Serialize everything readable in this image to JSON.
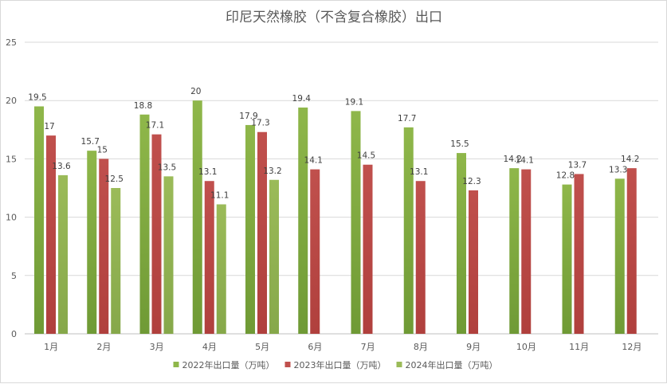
{
  "chart_data": {
    "type": "bar",
    "title": "印尼天然橡胶（不含复合橡胶）出口",
    "xlabel": "",
    "ylabel": "",
    "categories": [
      "1月",
      "2月",
      "3月",
      "4月",
      "5月",
      "6月",
      "7月",
      "8月",
      "9月",
      "10月",
      "11月",
      "12月"
    ],
    "ylim": [
      0,
      25
    ],
    "yticks": [
      0,
      5,
      10,
      15,
      20,
      25
    ],
    "grid": true,
    "legend_position": "bottom",
    "series": [
      {
        "name": "2022年出口量（万吨）",
        "color": "#8fb74a",
        "color_dark": "#6f9a35",
        "values": [
          19.5,
          15.7,
          18.8,
          20,
          17.9,
          19.4,
          19.1,
          17.7,
          15.5,
          14.2,
          12.8,
          13.3
        ]
      },
      {
        "name": "2023年出口量（万吨）",
        "color": "#c0504d",
        "color_dark": "#b0403d",
        "values": [
          17,
          15,
          17.1,
          13.1,
          17.3,
          14.1,
          14.5,
          13.1,
          12.3,
          14.1,
          13.7,
          14.2
        ]
      },
      {
        "name": "2024年出口量（万吨）",
        "color": "#9bbb59",
        "color_dark": "#86a84a",
        "values": [
          13.6,
          12.5,
          13.5,
          11.1,
          13.2,
          null,
          null,
          null,
          null,
          null,
          null,
          null
        ]
      }
    ]
  }
}
